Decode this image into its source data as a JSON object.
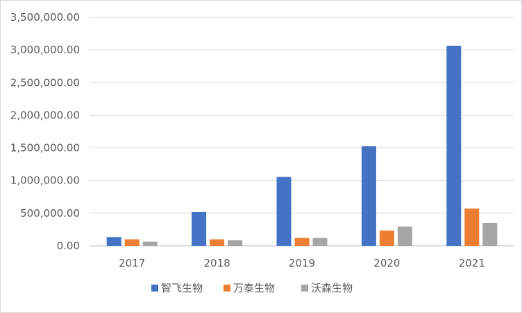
{
  "chart_data": {
    "type": "bar",
    "categories": [
      "2017",
      "2018",
      "2019",
      "2020",
      "2021"
    ],
    "series": [
      {
        "name": "智飞生物",
        "color": "#4472C4",
        "values": [
          135000,
          520000,
          1055000,
          1525000,
          3065000
        ]
      },
      {
        "name": "万泰生物",
        "color": "#ED7D31",
        "values": [
          100000,
          100000,
          120000,
          235000,
          570000
        ]
      },
      {
        "name": "沃森生物",
        "color": "#A5A5A5",
        "values": [
          65000,
          85000,
          120000,
          295000,
          350000
        ]
      }
    ],
    "ylim": [
      0,
      3500000
    ],
    "ytick_step": 500000,
    "ytick_labels": [
      "0.00",
      "500,000.00",
      "1,000,000.00",
      "1,500,000.00",
      "2,000,000.00",
      "2,500,000.00",
      "3,000,000.00",
      "3,500,000.00"
    ],
    "grid": true,
    "legend_position": "bottom"
  }
}
